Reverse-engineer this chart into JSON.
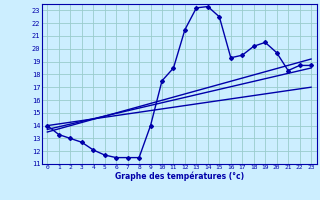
{
  "xlabel": "Graphe des températures (°c)",
  "background_color": "#cceeff",
  "grid_color": "#99cccc",
  "line_color": "#0000aa",
  "xlim": [
    -0.5,
    23.5
  ],
  "ylim": [
    11,
    23.5
  ],
  "xticks": [
    0,
    1,
    2,
    3,
    4,
    5,
    6,
    7,
    8,
    9,
    10,
    11,
    12,
    13,
    14,
    15,
    16,
    17,
    18,
    19,
    20,
    21,
    22,
    23
  ],
  "yticks": [
    11,
    12,
    13,
    14,
    15,
    16,
    17,
    18,
    19,
    20,
    21,
    22,
    23
  ],
  "curve1_x": [
    0,
    1,
    2,
    3,
    4,
    5,
    6,
    7,
    8,
    9,
    10,
    11,
    12,
    13,
    14,
    15,
    16,
    17,
    18,
    19,
    20,
    21,
    22,
    23
  ],
  "curve1_y": [
    14.0,
    13.3,
    13.0,
    12.7,
    12.1,
    11.7,
    11.5,
    11.5,
    11.5,
    14.0,
    17.5,
    18.5,
    21.5,
    23.2,
    23.3,
    22.5,
    19.3,
    19.5,
    20.2,
    20.5,
    19.7,
    18.3,
    18.7,
    18.7
  ],
  "trend1_x": [
    0,
    23
  ],
  "trend1_y": [
    13.5,
    19.2
  ],
  "trend2_x": [
    0,
    23
  ],
  "trend2_y": [
    13.7,
    18.5
  ],
  "trend3_x": [
    0,
    23
  ],
  "trend3_y": [
    14.0,
    17.0
  ],
  "marker": "D",
  "markersize": 2.0,
  "linewidth": 1.0
}
